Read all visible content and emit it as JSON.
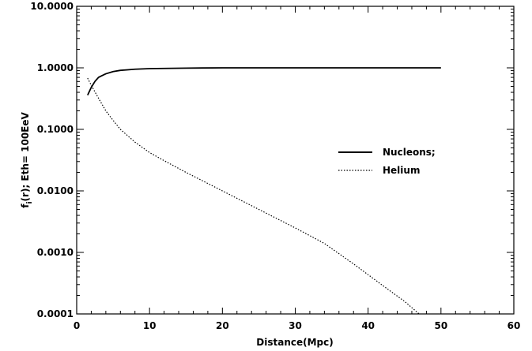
{
  "chart_data": {
    "type": "line",
    "xlabel": "Distance(Mpc)",
    "ylabel": "f_i(r); Eth= 100EeV",
    "ylabel_main": "f",
    "ylabel_sub": "i",
    "ylabel_rest": "(r); Eth= 100EeV",
    "xlim": [
      0,
      60
    ],
    "ylim": [
      0.0001,
      10
    ],
    "y_scale": "log",
    "x_ticks": [
      0,
      10,
      20,
      30,
      40,
      50,
      60
    ],
    "x_tick_labels": [
      "0",
      "10",
      "20",
      "30",
      "40",
      "50",
      "60"
    ],
    "y_ticks": [
      0.0001,
      0.001,
      0.01,
      0.1,
      1,
      10
    ],
    "y_tick_labels": [
      "0.0001",
      "0.0010",
      "0.0100",
      "0.1000",
      "1.0000",
      "10.0000"
    ],
    "grid": false,
    "legend_position": "right-center",
    "series": [
      {
        "name": "Nucleons;",
        "style": "solid",
        "x": [
          1.5,
          2,
          2.5,
          3,
          4,
          5,
          6,
          7,
          8,
          10,
          15,
          20,
          30,
          40,
          50
        ],
        "y": [
          0.36,
          0.48,
          0.6,
          0.7,
          0.8,
          0.87,
          0.91,
          0.93,
          0.95,
          0.97,
          0.99,
          1.0,
          1.0,
          1.0,
          1.0
        ]
      },
      {
        "name": "Helium",
        "style": "dotted",
        "x": [
          1.5,
          2,
          3,
          4,
          5,
          6,
          8,
          10,
          12,
          15,
          20,
          25,
          30,
          34,
          38,
          42,
          45,
          47
        ],
        "y": [
          0.68,
          0.52,
          0.32,
          0.2,
          0.14,
          0.1,
          0.062,
          0.042,
          0.031,
          0.02,
          0.01,
          0.005,
          0.0025,
          0.0014,
          0.00065,
          0.00029,
          0.00016,
          0.0001
        ]
      }
    ]
  }
}
